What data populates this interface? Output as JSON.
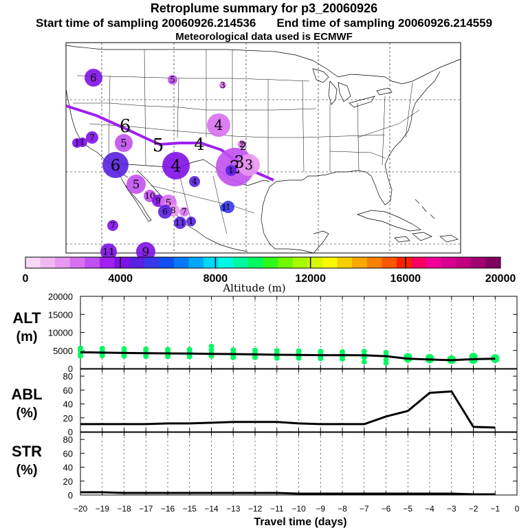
{
  "header": {
    "title": "Retroplume summary for p3_20060926",
    "start_label": "Start time of sampling 20060926.214536",
    "end_label": "End time of sampling 20060926.214559",
    "met_label": "Meteorological data used is ECMWF"
  },
  "colorbar": {
    "label": "Altitude (m)",
    "ticks": [
      "0",
      "4000",
      "8000",
      "12000",
      "16000",
      "20000"
    ],
    "range": [
      0,
      20000
    ],
    "colors": [
      "#f8d8f8",
      "#f0b8f0",
      "#e898f0",
      "#d870f0",
      "#c050f0",
      "#a020f0",
      "#8010e8",
      "#5820e0",
      "#3838e8",
      "#1050f0",
      "#0878f8",
      "#00a8f8",
      "#00d8f8",
      "#00f8e0",
      "#00f8a0",
      "#00f860",
      "#30f818",
      "#70f800",
      "#a8f800",
      "#d8f800",
      "#f8f800",
      "#f8d000",
      "#f8a800",
      "#f88000",
      "#f85800",
      "#f82000",
      "#f80060",
      "#f00098",
      "#d80090",
      "#c00080",
      "#a00070",
      "#800060"
    ]
  },
  "map": {
    "track_labels": [
      "6",
      "5",
      "4",
      "3",
      "2"
    ],
    "plume_labels": [
      "6",
      "5",
      "3",
      "1",
      "1",
      "7",
      "5",
      "6",
      "4",
      "4",
      "5",
      "4",
      "2",
      "2",
      "3",
      "1",
      "1",
      "1",
      "10",
      "9",
      "5",
      "8",
      "6",
      "7",
      "7",
      "1",
      "11",
      "9",
      "11"
    ]
  },
  "chart_data": [
    {
      "type": "line",
      "name": "ALT",
      "ylabel": "ALT (m)",
      "yticks": [
        "0",
        "5000",
        "10000",
        "15000",
        "20000"
      ],
      "ylim": [
        0,
        20000
      ],
      "x": [
        -20,
        -19,
        -18,
        -17,
        -16,
        -15,
        -14,
        -13,
        -12,
        -11,
        -10,
        -9,
        -8,
        -7,
        -6,
        -5,
        -4,
        -3,
        -2,
        -1
      ],
      "values": [
        4500,
        4400,
        4300,
        4250,
        4200,
        4150,
        4050,
        4000,
        3900,
        3800,
        3750,
        3700,
        3700,
        3650,
        3400,
        2700,
        2500,
        2300,
        2600,
        2700
      ],
      "spread": [
        [
          5700,
          4900,
          4100,
          3400
        ],
        [
          5600,
          4800,
          4100,
          3500
        ],
        [
          5500,
          4700,
          4000,
          3400
        ],
        [
          5400,
          4600,
          3900,
          3300
        ],
        [
          5300,
          4600,
          3900,
          3300
        ],
        [
          5300,
          4500,
          3800,
          3200
        ],
        [
          6200,
          5200,
          4300,
          3400
        ],
        [
          5200,
          4400,
          3700,
          3000
        ],
        [
          5100,
          4300,
          3600,
          3000
        ],
        [
          5000,
          4200,
          3500,
          2800
        ],
        [
          4900,
          4100,
          3400,
          2800
        ],
        [
          4800,
          4000,
          3300,
          2700
        ],
        [
          4700,
          4000,
          3300,
          2600
        ],
        [
          4800,
          3900,
          3000,
          1800
        ],
        [
          4500,
          3600,
          2400,
          1500
        ],
        [
          3300,
          2600
        ],
        [
          3100,
          2400
        ],
        [
          2700,
          2200
        ],
        [
          3400,
          2700,
          2200
        ],
        [
          3000,
          2500
        ]
      ]
    },
    {
      "type": "line",
      "name": "ABL",
      "ylabel": "ABL (%)",
      "yticks": [
        "0",
        "20",
        "40",
        "60",
        "80"
      ],
      "ylim": [
        0,
        90
      ],
      "x": [
        -20,
        -19,
        -18,
        -17,
        -16,
        -15,
        -14,
        -13,
        -12,
        -11,
        -10,
        -9,
        -8,
        -7,
        -6,
        -5,
        -4,
        -3,
        -2,
        -1
      ],
      "values": [
        11,
        11,
        11,
        11,
        12,
        12,
        13,
        14,
        14,
        14,
        12,
        11,
        11,
        11,
        22,
        30,
        56,
        58,
        7,
        6
      ]
    },
    {
      "type": "line",
      "name": "STR",
      "ylabel": "STR (%)",
      "yticks": [
        "0",
        "20",
        "40",
        "60",
        "80"
      ],
      "ylim": [
        0,
        90
      ],
      "xlabel": "Travel time (days)",
      "xticks": [
        "−20",
        "−19",
        "−18",
        "−17",
        "−16",
        "−15",
        "−14",
        "−13",
        "−12",
        "−11",
        "−10",
        "−9",
        "−8",
        "−7",
        "−6",
        "−5",
        "−4",
        "−3",
        "−2",
        "−1",
        "0"
      ],
      "x": [
        -20,
        -19,
        -18,
        -17,
        -16,
        -15,
        -14,
        -13,
        -12,
        -11,
        -10,
        -9,
        -8,
        -7,
        -6,
        -5,
        -4,
        -3,
        -2,
        -1
      ],
      "values": [
        4,
        4,
        3,
        3,
        3,
        3,
        3,
        3,
        3,
        3,
        2,
        2,
        2,
        2,
        2,
        2,
        2,
        2,
        1,
        1
      ]
    }
  ]
}
